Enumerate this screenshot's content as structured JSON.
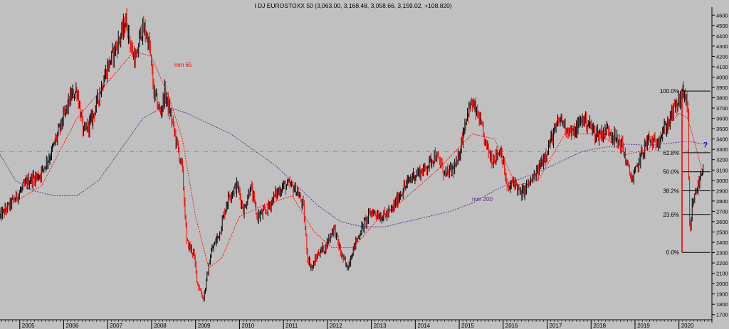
{
  "chart_data": {
    "type": "candlestick",
    "title": "I DJ EUROSTOXX 50 (3,063.00, 3,168.48, 3,058.66, 3,159.02, +108.820)",
    "x_ticks": [
      "2005",
      "2006",
      "2007",
      "2008",
      "2009",
      "2010",
      "2011",
      "2012",
      "2013",
      "2014",
      "2015",
      "2016",
      "2017",
      "2018",
      "2019",
      "2020"
    ],
    "y_range": [
      1650,
      4650
    ],
    "y_ticks": [
      1700,
      1800,
      1900,
      2000,
      2100,
      2200,
      2300,
      2400,
      2500,
      2600,
      2700,
      2800,
      2900,
      3000,
      3100,
      3200,
      3300,
      3400,
      3500,
      3600,
      3700,
      3800,
      3900,
      4000,
      4100,
      4200,
      4300,
      4400,
      4500,
      4600
    ],
    "price_path": [
      {
        "date": 2004.55,
        "value": 2650
      },
      {
        "date": 2004.85,
        "value": 2800
      },
      {
        "date": 2005.2,
        "value": 3000
      },
      {
        "date": 2005.45,
        "value": 3050
      },
      {
        "date": 2005.7,
        "value": 3250
      },
      {
        "date": 2005.95,
        "value": 3550
      },
      {
        "date": 2006.15,
        "value": 3800
      },
      {
        "date": 2006.3,
        "value": 3880
      },
      {
        "date": 2006.45,
        "value": 3450
      },
      {
        "date": 2006.65,
        "value": 3600
      },
      {
        "date": 2006.85,
        "value": 3900
      },
      {
        "date": 2007.0,
        "value": 4100
      },
      {
        "date": 2007.15,
        "value": 4250
      },
      {
        "date": 2007.3,
        "value": 4400
      },
      {
        "date": 2007.42,
        "value": 4550
      },
      {
        "date": 2007.55,
        "value": 4250
      },
      {
        "date": 2007.65,
        "value": 4150
      },
      {
        "date": 2007.75,
        "value": 4450
      },
      {
        "date": 2007.85,
        "value": 4450
      },
      {
        "date": 2007.95,
        "value": 4300
      },
      {
        "date": 2008.05,
        "value": 3850
      },
      {
        "date": 2008.2,
        "value": 3650
      },
      {
        "date": 2008.3,
        "value": 3850
      },
      {
        "date": 2008.45,
        "value": 3600
      },
      {
        "date": 2008.6,
        "value": 3300
      },
      {
        "date": 2008.7,
        "value": 3100
      },
      {
        "date": 2008.8,
        "value": 2400
      },
      {
        "date": 2008.95,
        "value": 2300
      },
      {
        "date": 2009.05,
        "value": 2000
      },
      {
        "date": 2009.18,
        "value": 1850
      },
      {
        "date": 2009.35,
        "value": 2300
      },
      {
        "date": 2009.55,
        "value": 2500
      },
      {
        "date": 2009.75,
        "value": 2850
      },
      {
        "date": 2009.95,
        "value": 2950
      },
      {
        "date": 2010.1,
        "value": 2700
      },
      {
        "date": 2010.25,
        "value": 2950
      },
      {
        "date": 2010.4,
        "value": 2650
      },
      {
        "date": 2010.6,
        "value": 2700
      },
      {
        "date": 2010.8,
        "value": 2850
      },
      {
        "date": 2011.0,
        "value": 2950
      },
      {
        "date": 2011.15,
        "value": 2950
      },
      {
        "date": 2011.3,
        "value": 2900
      },
      {
        "date": 2011.45,
        "value": 2750
      },
      {
        "date": 2011.55,
        "value": 2250
      },
      {
        "date": 2011.65,
        "value": 2150
      },
      {
        "date": 2011.8,
        "value": 2300
      },
      {
        "date": 2011.95,
        "value": 2350
      },
      {
        "date": 2012.15,
        "value": 2550
      },
      {
        "date": 2012.3,
        "value": 2300
      },
      {
        "date": 2012.45,
        "value": 2150
      },
      {
        "date": 2012.6,
        "value": 2350
      },
      {
        "date": 2012.8,
        "value": 2550
      },
      {
        "date": 2013.0,
        "value": 2700
      },
      {
        "date": 2013.25,
        "value": 2650
      },
      {
        "date": 2013.45,
        "value": 2700
      },
      {
        "date": 2013.7,
        "value": 2900
      },
      {
        "date": 2013.95,
        "value": 3050
      },
      {
        "date": 2014.2,
        "value": 3100
      },
      {
        "date": 2014.45,
        "value": 3250
      },
      {
        "date": 2014.7,
        "value": 3050
      },
      {
        "date": 2014.95,
        "value": 3150
      },
      {
        "date": 2015.15,
        "value": 3600
      },
      {
        "date": 2015.28,
        "value": 3750
      },
      {
        "date": 2015.45,
        "value": 3600
      },
      {
        "date": 2015.6,
        "value": 3350
      },
      {
        "date": 2015.75,
        "value": 3200
      },
      {
        "date": 2015.95,
        "value": 3300
      },
      {
        "date": 2016.1,
        "value": 2900
      },
      {
        "date": 2016.25,
        "value": 3000
      },
      {
        "date": 2016.4,
        "value": 2850
      },
      {
        "date": 2016.55,
        "value": 2950
      },
      {
        "date": 2016.75,
        "value": 3050
      },
      {
        "date": 2016.95,
        "value": 3250
      },
      {
        "date": 2017.15,
        "value": 3450
      },
      {
        "date": 2017.3,
        "value": 3600
      },
      {
        "date": 2017.45,
        "value": 3500
      },
      {
        "date": 2017.6,
        "value": 3450
      },
      {
        "date": 2017.8,
        "value": 3600
      },
      {
        "date": 2017.95,
        "value": 3550
      },
      {
        "date": 2018.1,
        "value": 3450
      },
      {
        "date": 2018.25,
        "value": 3450
      },
      {
        "date": 2018.4,
        "value": 3500
      },
      {
        "date": 2018.55,
        "value": 3400
      },
      {
        "date": 2018.7,
        "value": 3350
      },
      {
        "date": 2018.85,
        "value": 3100
      },
      {
        "date": 2018.95,
        "value": 3000
      },
      {
        "date": 2019.1,
        "value": 3200
      },
      {
        "date": 2019.3,
        "value": 3400
      },
      {
        "date": 2019.45,
        "value": 3350
      },
      {
        "date": 2019.6,
        "value": 3450
      },
      {
        "date": 2019.75,
        "value": 3550
      },
      {
        "date": 2019.9,
        "value": 3700
      },
      {
        "date": 2020.05,
        "value": 3800
      },
      {
        "date": 2020.13,
        "value": 3860
      },
      {
        "date": 2020.2,
        "value": 3700
      },
      {
        "date": 2020.23,
        "value": 2800
      },
      {
        "date": 2020.25,
        "value": 2400
      },
      {
        "date": 2020.3,
        "value": 2750
      },
      {
        "date": 2020.4,
        "value": 2900
      },
      {
        "date": 2020.5,
        "value": 3050
      },
      {
        "date": 2020.55,
        "value": 3159
      }
    ],
    "series": [
      {
        "name": "mm 65",
        "color": "#ff0000",
        "points": [
          {
            "date": 2004.55,
            "value": 2700
          },
          {
            "date": 2005.5,
            "value": 2950
          },
          {
            "date": 2006.3,
            "value": 3600
          },
          {
            "date": 2007.0,
            "value": 3950
          },
          {
            "date": 2007.6,
            "value": 4250
          },
          {
            "date": 2008.0,
            "value": 4200
          },
          {
            "date": 2008.4,
            "value": 3800
          },
          {
            "date": 2008.7,
            "value": 3400
          },
          {
            "date": 2009.0,
            "value": 2650
          },
          {
            "date": 2009.3,
            "value": 2150
          },
          {
            "date": 2009.6,
            "value": 2250
          },
          {
            "date": 2010.0,
            "value": 2650
          },
          {
            "date": 2010.5,
            "value": 2750
          },
          {
            "date": 2011.2,
            "value": 2850
          },
          {
            "date": 2011.7,
            "value": 2500
          },
          {
            "date": 2012.1,
            "value": 2350
          },
          {
            "date": 2012.6,
            "value": 2350
          },
          {
            "date": 2013.1,
            "value": 2600
          },
          {
            "date": 2013.7,
            "value": 2800
          },
          {
            "date": 2014.5,
            "value": 3100
          },
          {
            "date": 2015.3,
            "value": 3450
          },
          {
            "date": 2015.8,
            "value": 3400
          },
          {
            "date": 2016.3,
            "value": 2950
          },
          {
            "date": 2016.8,
            "value": 3000
          },
          {
            "date": 2017.4,
            "value": 3450
          },
          {
            "date": 2018.2,
            "value": 3450
          },
          {
            "date": 2018.8,
            "value": 3250
          },
          {
            "date": 2019.3,
            "value": 3300
          },
          {
            "date": 2020.0,
            "value": 3650
          },
          {
            "date": 2020.2,
            "value": 3600
          },
          {
            "date": 2020.4,
            "value": 3300
          },
          {
            "date": 2020.55,
            "value": 3050
          }
        ]
      },
      {
        "name": "mm 200",
        "color": "#5a2a8c",
        "points": [
          {
            "date": 2004.55,
            "value": 3250
          },
          {
            "date": 2004.9,
            "value": 3000
          },
          {
            "date": 2005.3,
            "value": 2900
          },
          {
            "date": 2005.8,
            "value": 2850
          },
          {
            "date": 2006.3,
            "value": 2850
          },
          {
            "date": 2006.8,
            "value": 3000
          },
          {
            "date": 2007.3,
            "value": 3300
          },
          {
            "date": 2007.8,
            "value": 3600
          },
          {
            "date": 2008.3,
            "value": 3720
          },
          {
            "date": 2008.8,
            "value": 3650
          },
          {
            "date": 2009.3,
            "value": 3550
          },
          {
            "date": 2009.8,
            "value": 3450
          },
          {
            "date": 2010.3,
            "value": 3300
          },
          {
            "date": 2010.8,
            "value": 3150
          },
          {
            "date": 2011.3,
            "value": 2950
          },
          {
            "date": 2011.8,
            "value": 2750
          },
          {
            "date": 2012.3,
            "value": 2600
          },
          {
            "date": 2012.8,
            "value": 2550
          },
          {
            "date": 2013.3,
            "value": 2550
          },
          {
            "date": 2013.8,
            "value": 2600
          },
          {
            "date": 2014.3,
            "value": 2650
          },
          {
            "date": 2014.8,
            "value": 2700
          },
          {
            "date": 2015.3,
            "value": 2780
          },
          {
            "date": 2015.8,
            "value": 2900
          },
          {
            "date": 2016.3,
            "value": 3000
          },
          {
            "date": 2016.8,
            "value": 3080
          },
          {
            "date": 2017.3,
            "value": 3180
          },
          {
            "date": 2017.8,
            "value": 3280
          },
          {
            "date": 2018.3,
            "value": 3320
          },
          {
            "date": 2018.8,
            "value": 3350
          },
          {
            "date": 2019.3,
            "value": 3340
          },
          {
            "date": 2019.8,
            "value": 3360
          },
          {
            "date": 2020.2,
            "value": 3380
          },
          {
            "date": 2020.55,
            "value": 3350
          }
        ]
      }
    ],
    "fibonacci": {
      "high": 3865,
      "low": 2302,
      "levels": [
        {
          "label": "100.0%",
          "value": 3865
        },
        {
          "label": "61.8%",
          "value": 3268
        },
        {
          "label": "50.0%",
          "value": 3083
        },
        {
          "label": "38.2%",
          "value": 2899
        },
        {
          "label": "23.6%",
          "value": 2670
        },
        {
          "label": "0.0%",
          "value": 2302
        }
      ]
    },
    "reference_line": 3280,
    "question_mark": {
      "text": "?",
      "date": 2020.45,
      "value": 3320,
      "color": "#0000cc"
    },
    "colors": {
      "background": "#c0c0c0",
      "up": "#000000",
      "down": "#ff0000",
      "axis": "#000000"
    }
  }
}
